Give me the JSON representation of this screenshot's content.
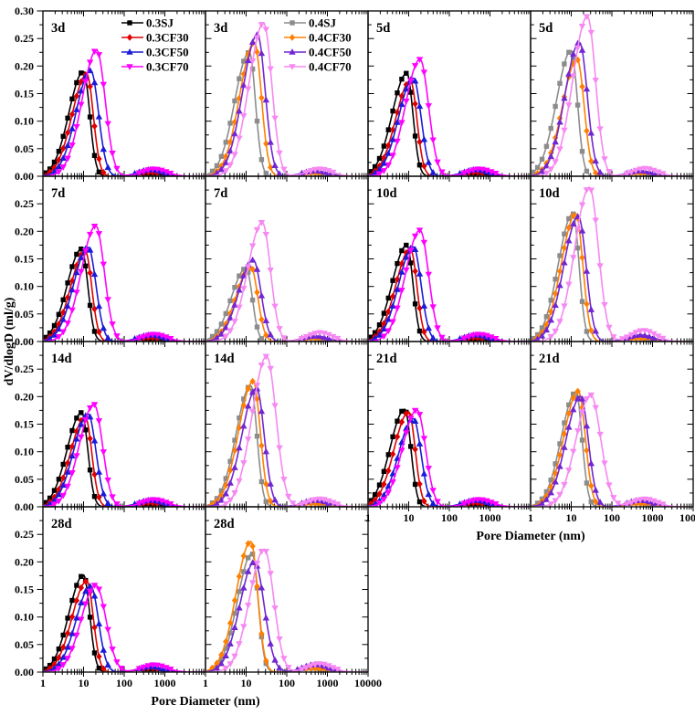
{
  "figure": {
    "ylabel": "dV/dlogD (ml/g)",
    "xlabel": "Pore Diameter (nm)",
    "y_tick_labels_first_row": [
      "0.30",
      "0.25",
      "0.20",
      "0.15",
      "0.10",
      "0.05",
      "0.00"
    ],
    "y_tick_labels_other_rows": [
      "0.25",
      "0.20",
      "0.15",
      "0.10",
      "0.05",
      "0.00"
    ],
    "x_tick_labels": [
      "1",
      "10",
      "100",
      "1000",
      "10000"
    ]
  },
  "series_styles": {
    "0.3SJ": {
      "color": "#000000",
      "marker": "square",
      "sr": 0.15
    },
    "0.3CF30": {
      "color": "#e00000",
      "marker": "diamond",
      "sr": 0.16
    },
    "0.3CF50": {
      "color": "#1a1ad9",
      "marker": "triangle-up",
      "sr": 0.19
    },
    "0.3CF70": {
      "color": "#ff00ff",
      "marker": "triangle-down",
      "sr": 0.21
    },
    "0.4SJ": {
      "color": "#8c8c8c",
      "marker": "square",
      "sr": 0.15
    },
    "0.4CF30": {
      "color": "#ff8000",
      "marker": "diamond",
      "sr": 0.17
    },
    "0.4CF50": {
      "color": "#7126d3",
      "marker": "triangle-up",
      "sr": 0.19
    },
    "0.4CF70": {
      "color": "#f688f2",
      "marker": "triangle-down",
      "sr": 0.21
    }
  },
  "legends": [
    {
      "panel": 0,
      "items": [
        {
          "label": "0.3SJ"
        },
        {
          "label": "0.3CF30"
        },
        {
          "label": "0.3CF50"
        },
        {
          "label": "0.3CF70"
        }
      ]
    },
    {
      "panel": 1,
      "items": [
        {
          "label": "0.4SJ"
        },
        {
          "label": "0.4CF30"
        },
        {
          "label": "0.4CF50"
        },
        {
          "label": "0.4CF70"
        }
      ]
    }
  ],
  "chart_data": {
    "type": "line",
    "x_scale": "log",
    "x_range": [
      1,
      10000
    ],
    "x_unit": "nm",
    "y_label": "dV/dlogD (ml/g)",
    "y_range_first_row": [
      0,
      0.3
    ],
    "y_range_other_rows": [
      0,
      0.3
    ],
    "note": "Pore size distribution curves; each series approximated by asymmetric log-normal peak (peak_nm, peak_value) plus small secondary bump [bump_nm, bump_value] near 500 nm.",
    "panels": [
      {
        "label": "3d",
        "row": 0,
        "col": 0,
        "series": [
          {
            "name": "0.3SJ",
            "peak_nm": 10,
            "peak_value": 0.19,
            "bump": [
              380,
              0.005
            ]
          },
          {
            "name": "0.3CF30",
            "peak_nm": 12,
            "peak_value": 0.185,
            "bump": [
              420,
              0.007
            ]
          },
          {
            "name": "0.3CF50",
            "peak_nm": 15,
            "peak_value": 0.192,
            "bump": [
              450,
              0.012
            ]
          },
          {
            "name": "0.3CF70",
            "peak_nm": 21,
            "peak_value": 0.229,
            "bump": [
              550,
              0.013
            ]
          }
        ]
      },
      {
        "label": "3d",
        "row": 0,
        "col": 1,
        "series": [
          {
            "name": "0.4SJ",
            "peak_nm": 12,
            "peak_value": 0.225,
            "bump": [
              380,
              0.004
            ]
          },
          {
            "name": "0.4CF30",
            "peak_nm": 16,
            "peak_value": 0.243,
            "bump": [
              450,
              0.006
            ]
          },
          {
            "name": "0.4CF50",
            "peak_nm": 19,
            "peak_value": 0.257,
            "bump": [
              500,
              0.01
            ]
          },
          {
            "name": "0.4CF70",
            "peak_nm": 27,
            "peak_value": 0.278,
            "sr": 0.2,
            "bump": [
              650,
              0.013
            ]
          }
        ]
      },
      {
        "label": "5d",
        "row": 0,
        "col": 2,
        "series": [
          {
            "name": "0.3SJ",
            "peak_nm": 9,
            "peak_value": 0.187,
            "bump": [
              380,
              0.005
            ]
          },
          {
            "name": "0.3CF30",
            "peak_nm": 11,
            "peak_value": 0.173,
            "bump": [
              420,
              0.007
            ]
          },
          {
            "name": "0.3CF50",
            "peak_nm": 13,
            "peak_value": 0.178,
            "bump": [
              450,
              0.012
            ]
          },
          {
            "name": "0.3CF70",
            "peak_nm": 19,
            "peak_value": 0.212,
            "bump": [
              550,
              0.013
            ]
          }
        ]
      },
      {
        "label": "5d",
        "row": 0,
        "col": 3,
        "series": [
          {
            "name": "0.4SJ",
            "peak_nm": 10,
            "peak_value": 0.228,
            "bump": [
              380,
              0.004
            ]
          },
          {
            "name": "0.4CF30",
            "peak_nm": 14,
            "peak_value": 0.212,
            "bump": [
              450,
              0.006
            ]
          },
          {
            "name": "0.4CF50",
            "peak_nm": 16,
            "peak_value": 0.243,
            "bump": [
              500,
              0.01
            ]
          },
          {
            "name": "0.4CF70",
            "peak_nm": 25,
            "peak_value": 0.29,
            "sr": 0.2,
            "bump": [
              650,
              0.014
            ]
          }
        ]
      },
      {
        "label": "7d",
        "row": 1,
        "col": 0,
        "series": [
          {
            "name": "0.3SJ",
            "peak_nm": 9,
            "peak_value": 0.168,
            "bump": [
              380,
              0.005
            ]
          },
          {
            "name": "0.3CF30",
            "peak_nm": 11,
            "peak_value": 0.164,
            "bump": [
              420,
              0.007
            ]
          },
          {
            "name": "0.3CF50",
            "peak_nm": 13,
            "peak_value": 0.171,
            "bump": [
              450,
              0.012
            ]
          },
          {
            "name": "0.3CF70",
            "peak_nm": 20,
            "peak_value": 0.21,
            "bump": [
              550,
              0.013
            ]
          }
        ]
      },
      {
        "label": "7d",
        "row": 1,
        "col": 1,
        "series": [
          {
            "name": "0.4SJ",
            "peak_nm": 10,
            "peak_value": 0.133,
            "bump": [
              380,
              0.004
            ]
          },
          {
            "name": "0.4CF30",
            "peak_nm": 13,
            "peak_value": 0.136,
            "bump": [
              450,
              0.006
            ]
          },
          {
            "name": "0.4CF50",
            "peak_nm": 15,
            "peak_value": 0.148,
            "bump": [
              500,
              0.01
            ]
          },
          {
            "name": "0.4CF70",
            "peak_nm": 25,
            "peak_value": 0.216,
            "sr": 0.2,
            "bump": [
              650,
              0.016
            ]
          }
        ]
      },
      {
        "label": "10d",
        "row": 1,
        "col": 2,
        "series": [
          {
            "name": "0.3SJ",
            "peak_nm": 9,
            "peak_value": 0.175,
            "bump": [
              380,
              0.005
            ]
          },
          {
            "name": "0.3CF30",
            "peak_nm": 11,
            "peak_value": 0.168,
            "bump": [
              420,
              0.007
            ]
          },
          {
            "name": "0.3CF50",
            "peak_nm": 13,
            "peak_value": 0.172,
            "bump": [
              450,
              0.012
            ]
          },
          {
            "name": "0.3CF70",
            "peak_nm": 19,
            "peak_value": 0.202,
            "bump": [
              550,
              0.013
            ]
          }
        ]
      },
      {
        "label": "10d",
        "row": 1,
        "col": 3,
        "series": [
          {
            "name": "0.4SJ",
            "peak_nm": 11,
            "peak_value": 0.232,
            "bump": [
              380,
              0.004
            ]
          },
          {
            "name": "0.4CF30",
            "peak_nm": 13,
            "peak_value": 0.232,
            "bump": [
              450,
              0.006
            ]
          },
          {
            "name": "0.4CF50",
            "peak_nm": 15,
            "peak_value": 0.227,
            "bump": [
              500,
              0.012
            ]
          },
          {
            "name": "0.4CF70",
            "peak_nm": 28,
            "peak_value": 0.28,
            "sr": 0.22,
            "bump": [
              600,
              0.02
            ]
          }
        ]
      },
      {
        "label": "14d",
        "row": 2,
        "col": 0,
        "series": [
          {
            "name": "0.3SJ",
            "peak_nm": 9,
            "peak_value": 0.171,
            "bump": [
              380,
              0.005
            ]
          },
          {
            "name": "0.3CF30",
            "peak_nm": 11,
            "peak_value": 0.163,
            "bump": [
              420,
              0.007
            ]
          },
          {
            "name": "0.3CF50",
            "peak_nm": 13,
            "peak_value": 0.168,
            "bump": [
              450,
              0.012
            ]
          },
          {
            "name": "0.3CF70",
            "peak_nm": 18,
            "peak_value": 0.186,
            "bump": [
              550,
              0.013
            ]
          }
        ]
      },
      {
        "label": "14d",
        "row": 2,
        "col": 1,
        "series": [
          {
            "name": "0.4SJ",
            "peak_nm": 13,
            "peak_value": 0.22,
            "bump": [
              380,
              0.004
            ]
          },
          {
            "name": "0.4CF30",
            "peak_nm": 15,
            "peak_value": 0.228,
            "bump": [
              450,
              0.006
            ]
          },
          {
            "name": "0.4CF50",
            "peak_nm": 18,
            "peak_value": 0.215,
            "bump": [
              500,
              0.012
            ]
          },
          {
            "name": "0.4CF70",
            "peak_nm": 32,
            "peak_value": 0.273,
            "sr": 0.23,
            "bump": [
              650,
              0.014
            ]
          }
        ]
      },
      {
        "label": "21d",
        "row": 2,
        "col": 2,
        "series": [
          {
            "name": "0.3SJ",
            "peak_nm": 8,
            "peak_value": 0.177,
            "bump": [
              380,
              0.005
            ]
          },
          {
            "name": "0.3CF30",
            "peak_nm": 10,
            "peak_value": 0.172,
            "bump": [
              420,
              0.007
            ]
          },
          {
            "name": "0.3CF50",
            "peak_nm": 13,
            "peak_value": 0.16,
            "bump": [
              450,
              0.012
            ]
          },
          {
            "name": "0.3CF70",
            "peak_nm": 16,
            "peak_value": 0.176,
            "bump": [
              550,
              0.013
            ]
          }
        ]
      },
      {
        "label": "21d",
        "row": 2,
        "col": 3,
        "series": [
          {
            "name": "0.4SJ",
            "peak_nm": 13,
            "peak_value": 0.208,
            "bump": [
              380,
              0.004
            ]
          },
          {
            "name": "0.4CF30",
            "peak_nm": 15,
            "peak_value": 0.21,
            "bump": [
              450,
              0.006
            ]
          },
          {
            "name": "0.4CF50",
            "peak_nm": 17,
            "peak_value": 0.2,
            "bump": [
              500,
              0.012
            ]
          },
          {
            "name": "0.4CF70",
            "peak_nm": 30,
            "peak_value": 0.203,
            "sr": 0.25,
            "bump": [
              650,
              0.014
            ]
          }
        ]
      },
      {
        "label": "28d",
        "row": 3,
        "col": 0,
        "series": [
          {
            "name": "0.3SJ",
            "peak_nm": 10,
            "peak_value": 0.176,
            "bump": [
              380,
              0.005
            ]
          },
          {
            "name": "0.3CF30",
            "peak_nm": 12,
            "peak_value": 0.165,
            "bump": [
              420,
              0.007
            ]
          },
          {
            "name": "0.3CF50",
            "peak_nm": 15,
            "peak_value": 0.156,
            "bump": [
              450,
              0.01
            ]
          },
          {
            "name": "0.3CF70",
            "peak_nm": 20,
            "peak_value": 0.158,
            "sr": 0.25,
            "bump": [
              550,
              0.013
            ]
          }
        ]
      },
      {
        "label": "28d",
        "row": 3,
        "col": 1,
        "series": [
          {
            "name": "0.4SJ",
            "peak_nm": 14,
            "peak_value": 0.215,
            "bump": [
              380,
              0.004
            ]
          },
          {
            "name": "0.4CF30",
            "peak_nm": 13,
            "peak_value": 0.237,
            "bump": [
              450,
              0.007
            ]
          },
          {
            "name": "0.4CF50",
            "peak_nm": 16,
            "peak_value": 0.2,
            "sr": 0.24,
            "bump": [
              500,
              0.014
            ]
          },
          {
            "name": "0.4CF70",
            "peak_nm": 28,
            "peak_value": 0.223,
            "sr": 0.23,
            "bump": [
              650,
              0.015
            ]
          }
        ]
      }
    ]
  }
}
